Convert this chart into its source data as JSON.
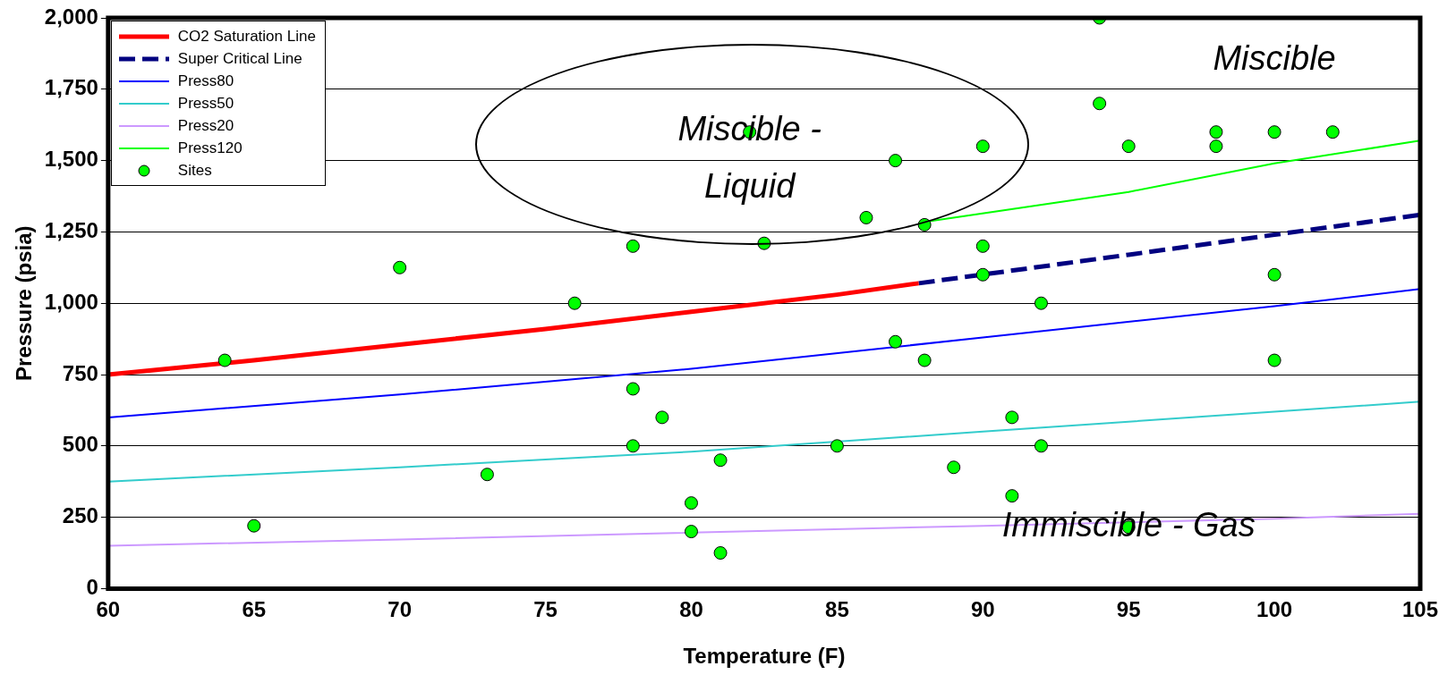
{
  "chart_data": {
    "type": "line",
    "xlabel": "Temperature (F)",
    "ylabel": "Pressure (psia)",
    "xlim": [
      60,
      105
    ],
    "xticks": [
      60,
      65,
      70,
      75,
      80,
      85,
      90,
      95,
      100,
      105
    ],
    "ylim": [
      0,
      2000
    ],
    "yticks": [
      {
        "value": 0,
        "label": "0"
      },
      {
        "value": 250,
        "label": "250"
      },
      {
        "value": 500,
        "label": "500"
      },
      {
        "value": 750,
        "label": "750"
      },
      {
        "value": 1000,
        "label": "1,000"
      },
      {
        "value": 1250,
        "label": "1,250"
      },
      {
        "value": 1500,
        "label": "1,500"
      },
      {
        "value": 1750,
        "label": "1,750"
      },
      {
        "value": 2000,
        "label": "2,000"
      }
    ],
    "grid": "y",
    "legend": "top left",
    "series": [
      {
        "name": "CO2 Saturation Line",
        "type": "line",
        "color": "#ff0000",
        "line_style": "solid",
        "marker": "none",
        "x": [
          60,
          65,
          70,
          75,
          80,
          85,
          87.8
        ],
        "values": [
          750,
          800,
          855,
          910,
          970,
          1030,
          1070
        ]
      },
      {
        "name": "Super Critical Line",
        "type": "line",
        "color": "#000080",
        "line_style": "dashed",
        "marker": "none",
        "x": [
          87.8,
          95,
          100,
          105
        ],
        "values": [
          1070,
          1170,
          1240,
          1310
        ]
      },
      {
        "name": "Press80",
        "type": "line",
        "color": "#0000ff",
        "line_style": "solid",
        "marker": "none",
        "x": [
          60,
          70,
          80,
          90,
          100,
          105
        ],
        "values": [
          600,
          680,
          770,
          880,
          990,
          1050
        ]
      },
      {
        "name": "Press50",
        "type": "line",
        "color": "#33cccc",
        "line_style": "solid",
        "marker": "none",
        "x": [
          60,
          70,
          80,
          90,
          100,
          105
        ],
        "values": [
          375,
          425,
          480,
          550,
          620,
          655
        ]
      },
      {
        "name": "Press20",
        "type": "line",
        "color": "#cc99ff",
        "line_style": "solid",
        "marker": "none",
        "x": [
          60,
          70,
          90,
          100,
          105
        ],
        "values": [
          150,
          172,
          220,
          245,
          262
        ]
      },
      {
        "name": "Press120",
        "type": "line",
        "color": "#00ff00",
        "line_style": "solid",
        "marker": "none",
        "x": [
          88,
          95,
          100,
          105
        ],
        "values": [
          1285,
          1390,
          1490,
          1570
        ]
      },
      {
        "name": "Sites",
        "type": "scatter",
        "color": "#00ff00",
        "marker": "circle",
        "x": [
          64,
          65,
          70,
          73,
          76,
          78,
          78,
          78,
          79,
          80,
          80,
          81,
          81,
          82,
          82.5,
          85,
          86,
          87,
          87,
          88,
          88,
          89,
          90,
          90,
          90,
          91,
          91,
          92,
          92,
          94,
          94,
          95,
          95,
          98,
          98,
          100,
          100,
          100,
          102
        ],
        "values": [
          800,
          220,
          1125,
          400,
          1000,
          1200,
          700,
          500,
          600,
          300,
          200,
          450,
          125,
          1600,
          1210,
          500,
          1300,
          1500,
          865,
          1275,
          800,
          425,
          1550,
          1200,
          1100,
          600,
          325,
          1000,
          500,
          2000,
          1700,
          1550,
          215,
          1600,
          1550,
          1600,
          1100,
          800,
          1600
        ]
      }
    ],
    "annotations": [
      "Miscible",
      "Miscible - Liquid",
      "Immiscible - Gas"
    ]
  }
}
